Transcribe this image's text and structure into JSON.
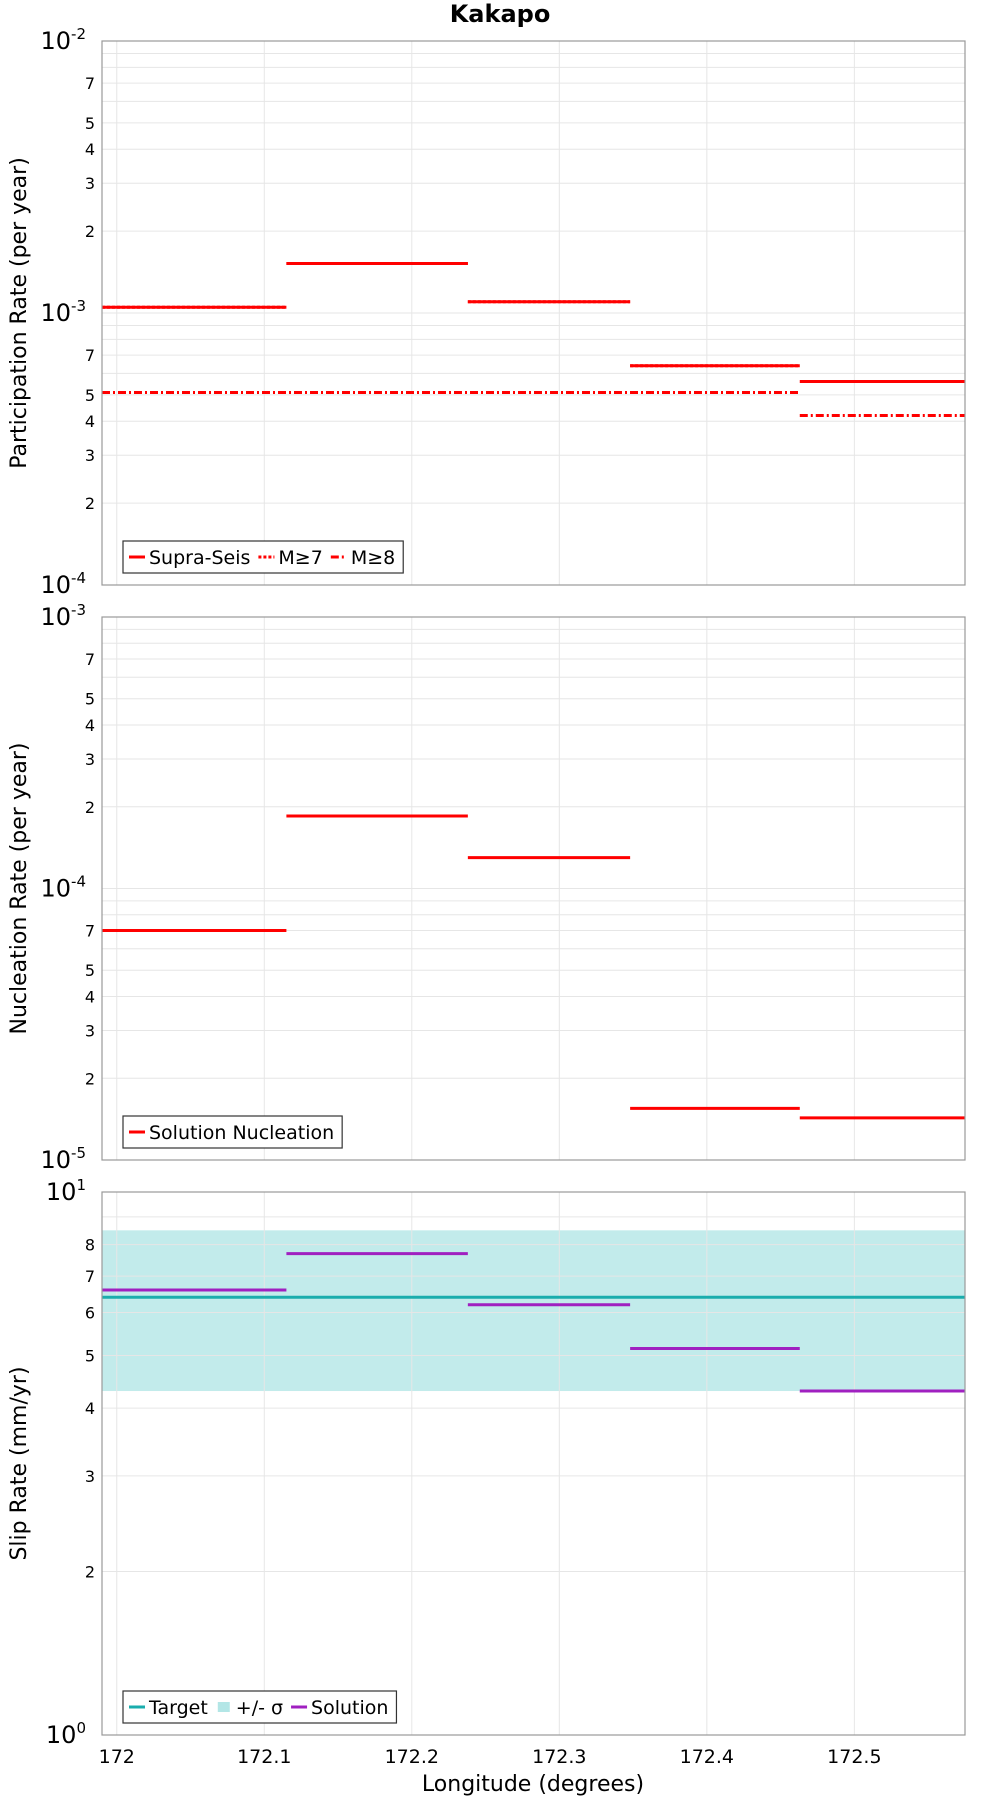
{
  "chart_data": {
    "title": "Kakapo",
    "xlabel": "Longitude (degrees)",
    "xlim": [
      171.99,
      172.575
    ],
    "xticks": [
      172,
      172.1,
      172.2,
      172.3,
      172.4,
      172.5
    ],
    "xtick_labels": [
      "172",
      "172.1",
      "172.2",
      "172.3",
      "172.4",
      "172.5"
    ],
    "panels": [
      {
        "type": "line",
        "scale": "log",
        "ylabel": "Participation Rate (per year)",
        "ylim": [
          0.0001,
          0.01
        ],
        "major_labels": [
          {
            "value": 0.01,
            "base": "10",
            "exp": "-2"
          },
          {
            "value": 0.001,
            "base": "10",
            "exp": "-3"
          },
          {
            "value": 0.0001,
            "base": "10",
            "exp": "-4"
          }
        ],
        "minor_labels": [
          {
            "value": 0.007,
            "label": "7"
          },
          {
            "value": 0.005,
            "label": "5"
          },
          {
            "value": 0.004,
            "label": "4"
          },
          {
            "value": 0.003,
            "label": "3"
          },
          {
            "value": 0.002,
            "label": "2"
          },
          {
            "value": 0.0007,
            "label": "7"
          },
          {
            "value": 0.0005,
            "label": "5"
          },
          {
            "value": 0.0004,
            "label": "4"
          },
          {
            "value": 0.0003,
            "label": "3"
          },
          {
            "value": 0.0002,
            "label": "2"
          }
        ],
        "series": [
          {
            "name": "Supra-Seis",
            "color": "#ff0000",
            "style": "solid",
            "segments": [
              [
                171.99,
                172.115,
                0.00105
              ],
              [
                172.115,
                172.238,
                0.00152
              ],
              [
                172.238,
                172.348,
                0.0011
              ],
              [
                172.348,
                172.463,
                0.00064
              ],
              [
                172.463,
                172.575,
                0.00056
              ]
            ]
          },
          {
            "name": "M≥7",
            "color": "#ff0000",
            "style": "dotted",
            "segments": [
              [
                171.99,
                172.115,
                0.00105
              ],
              [
                172.115,
                172.238,
                0.00152
              ],
              [
                172.238,
                172.348,
                0.0011
              ],
              [
                172.348,
                172.463,
                0.00064
              ]
            ]
          },
          {
            "name": "M≥8",
            "color": "#ff0000",
            "style": "dashdot",
            "segments": [
              [
                171.99,
                172.463,
                0.00051
              ],
              [
                172.463,
                172.575,
                0.00042
              ]
            ]
          }
        ]
      },
      {
        "type": "line",
        "scale": "log",
        "ylabel": "Nucleation Rate (per year)",
        "ylim": [
          1e-05,
          0.001
        ],
        "major_labels": [
          {
            "value": 0.001,
            "base": "10",
            "exp": "-3"
          },
          {
            "value": 0.0001,
            "base": "10",
            "exp": "-4"
          },
          {
            "value": 1e-05,
            "base": "10",
            "exp": "-5"
          }
        ],
        "minor_labels": [
          {
            "value": 0.0007,
            "label": "7"
          },
          {
            "value": 0.0005,
            "label": "5"
          },
          {
            "value": 0.0004,
            "label": "4"
          },
          {
            "value": 0.0003,
            "label": "3"
          },
          {
            "value": 0.0002,
            "label": "2"
          },
          {
            "value": 7e-05,
            "label": "7"
          },
          {
            "value": 5e-05,
            "label": "5"
          },
          {
            "value": 4e-05,
            "label": "4"
          },
          {
            "value": 3e-05,
            "label": "3"
          },
          {
            "value": 2e-05,
            "label": "2"
          }
        ],
        "series": [
          {
            "name": "Solution Nucleation",
            "color": "#ff0000",
            "style": "solid",
            "segments": [
              [
                171.99,
                172.115,
                7e-05
              ],
              [
                172.115,
                172.238,
                0.000185
              ],
              [
                172.238,
                172.348,
                0.00013
              ],
              [
                172.348,
                172.463,
                1.55e-05
              ],
              [
                172.463,
                172.575,
                1.43e-05
              ]
            ]
          }
        ]
      },
      {
        "type": "line",
        "scale": "log",
        "ylabel": "Slip Rate (mm/yr)",
        "ylim": [
          1,
          10
        ],
        "major_labels": [
          {
            "value": 10,
            "base": "10",
            "exp": "1"
          },
          {
            "value": 1,
            "base": "10",
            "exp": "0"
          }
        ],
        "minor_labels": [
          {
            "value": 8,
            "label": "8"
          },
          {
            "value": 7,
            "label": "7"
          },
          {
            "value": 6,
            "label": "6"
          },
          {
            "value": 5,
            "label": "5"
          },
          {
            "value": 4,
            "label": "4"
          },
          {
            "value": 3,
            "label": "3"
          },
          {
            "value": 2,
            "label": "2"
          }
        ],
        "band": {
          "name": "+/- σ",
          "color": "#b3e6e6",
          "lower": 4.3,
          "upper": 8.5
        },
        "series": [
          {
            "name": "Target",
            "color": "#1aadad",
            "style": "solid",
            "segments": [
              [
                171.99,
                172.575,
                6.4
              ]
            ]
          },
          {
            "name": "Solution",
            "color": "#a020c0",
            "style": "solid",
            "segments": [
              [
                171.99,
                172.115,
                6.6
              ],
              [
                172.115,
                172.238,
                7.7
              ],
              [
                172.238,
                172.348,
                6.2
              ],
              [
                172.348,
                172.463,
                5.15
              ],
              [
                172.463,
                172.575,
                4.3
              ]
            ]
          }
        ],
        "legend_order": [
          "Target",
          "+/- σ",
          "Solution"
        ]
      }
    ],
    "legend_placement": "bottom-left"
  }
}
